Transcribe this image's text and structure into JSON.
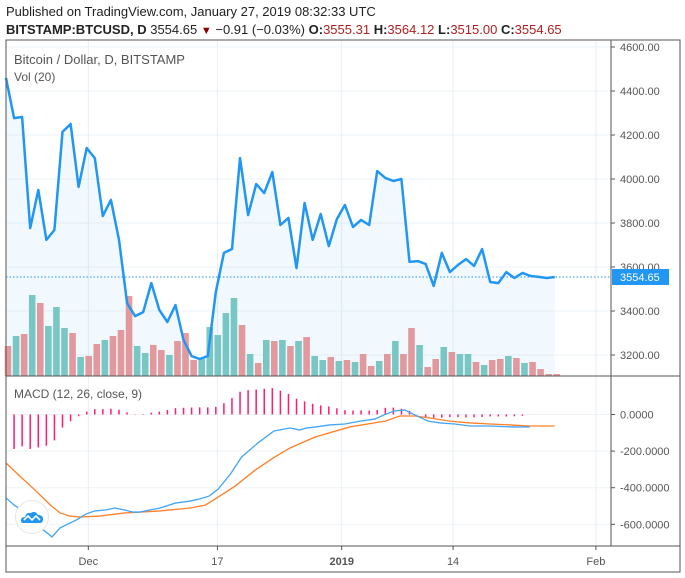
{
  "header": {
    "published": "Published on TradingView.com, January 27, 2019 08:32:33 UTC",
    "symbol": "BITSTAMP:BTCUSD, D",
    "last": "3554.65",
    "change": "−0.91 (−0.03%)",
    "o_label": "O:",
    "o": "3555.31",
    "h_label": "H:",
    "h": "3564.12",
    "l_label": "L:",
    "l": "3515.00",
    "c_label": "C:",
    "c": "3554.65"
  },
  "legend": {
    "main": "Bitcoin / Dollar, D, BITSTAMP",
    "volume": "Vol (20)",
    "macd": "MACD (12, 26, close, 9)"
  },
  "colors": {
    "line": "#2196f3",
    "up": "#7fcac2",
    "down": "#ef9a9a",
    "macd": "#42a5f5",
    "signal": "#ff7f27",
    "hist": "#ff1a75"
  },
  "chart_data": [
    {
      "type": "line",
      "title": "Bitcoin / Dollar, D, BITSTAMP",
      "x_start": "2018-11-20",
      "x_unit": "day",
      "close": [
        4459,
        4277,
        4282,
        3777,
        3950,
        3723,
        3768,
        4214,
        4250,
        3964,
        4141,
        4095,
        3832,
        3905,
        3723,
        3436,
        3377,
        3395,
        3527,
        3405,
        3350,
        3427,
        3268,
        3195,
        3182,
        3195,
        3486,
        3664,
        3682,
        4095,
        3836,
        3977,
        3936,
        4032,
        3791,
        3823,
        3595,
        3891,
        3723,
        3841,
        3695,
        3818,
        3882,
        3782,
        3814,
        3791,
        4036,
        4005,
        3991,
        4000,
        3623,
        3627,
        3614,
        3514,
        3664,
        3577,
        3609,
        3636,
        3605,
        3682,
        3532,
        3527,
        3577,
        3550,
        3573,
        3559,
        3555,
        3550,
        3554.65
      ],
      "volume_rel": [
        30,
        40,
        42,
        81,
        73,
        50,
        69,
        48,
        43,
        19,
        20,
        32,
        36,
        40,
        46,
        80,
        30,
        23,
        31,
        26,
        21,
        35,
        43,
        16,
        17,
        49,
        41,
        63,
        78,
        51,
        22,
        13,
        36,
        35,
        36,
        30,
        35,
        39,
        20,
        16,
        19,
        15,
        16,
        14,
        22,
        10,
        15,
        22,
        35,
        22,
        48,
        31,
        9,
        17,
        29,
        24,
        22,
        22,
        14,
        11,
        16,
        17,
        20,
        18,
        13,
        14,
        7,
        2,
        2
      ],
      "volume_up": [
        false,
        true,
        false,
        true,
        false,
        true,
        true,
        true,
        false,
        true,
        false,
        false,
        true,
        false,
        false,
        false,
        true,
        true,
        false,
        false,
        true,
        false,
        false,
        false,
        true,
        true,
        true,
        true,
        true,
        false,
        true,
        false,
        true,
        false,
        true,
        false,
        true,
        false,
        true,
        true,
        false,
        true,
        false,
        true,
        false,
        false,
        true,
        false,
        true,
        false,
        false,
        true,
        false,
        false,
        true,
        false,
        true,
        true,
        false,
        true,
        false,
        false,
        true,
        false,
        true,
        false,
        false,
        false,
        false
      ],
      "y_ticks": [
        "4600.00",
        "4400.00",
        "4200.00",
        "4000.00",
        "3800.00",
        "3600.00",
        "3400.00",
        "3200.00"
      ],
      "ylim": [
        3120,
        4660
      ],
      "last_price_label": "3554.65"
    },
    {
      "type": "line",
      "title": "MACD (12, 26, close, 9)",
      "macd": [
        [
          0,
          -456
        ],
        [
          1,
          -495
        ],
        [
          2,
          -522
        ],
        [
          3,
          -577
        ],
        [
          4.8,
          -637
        ],
        [
          5.7,
          -669
        ],
        [
          6.7,
          -620
        ],
        [
          7.7,
          -598
        ],
        [
          8.7,
          -577
        ],
        [
          9.9,
          -544
        ],
        [
          11,
          -527
        ],
        [
          12.3,
          -522
        ],
        [
          13.5,
          -511
        ],
        [
          14.7,
          -522
        ],
        [
          15.7,
          -533
        ],
        [
          16.6,
          -533
        ],
        [
          17.8,
          -522
        ],
        [
          19.1,
          -511
        ],
        [
          21,
          -484
        ],
        [
          22.8,
          -473
        ],
        [
          24,
          -462
        ],
        [
          25.2,
          -445
        ],
        [
          26.3,
          -407
        ],
        [
          27.8,
          -326
        ],
        [
          29.2,
          -232
        ],
        [
          31.2,
          -156
        ],
        [
          33.2,
          -90
        ],
        [
          35.2,
          -74
        ],
        [
          36.4,
          -85
        ],
        [
          37.2,
          -74
        ],
        [
          38.4,
          -68
        ],
        [
          40.1,
          -57
        ],
        [
          42,
          -52
        ],
        [
          43.9,
          -36
        ],
        [
          45.7,
          -25
        ],
        [
          46.8,
          -3
        ],
        [
          48.1,
          19
        ],
        [
          49.4,
          25
        ],
        [
          50.7,
          -3
        ],
        [
          52.3,
          -36
        ],
        [
          53.8,
          -46
        ],
        [
          55.6,
          -52
        ],
        [
          57.5,
          -63
        ],
        [
          60,
          -63
        ],
        [
          62.5,
          -68
        ],
        [
          64.9,
          -68
        ]
      ],
      "signal": [
        [
          0,
          -265
        ],
        [
          1.7,
          -336
        ],
        [
          3.6,
          -413
        ],
        [
          5.5,
          -495
        ],
        [
          6.7,
          -538
        ],
        [
          7.9,
          -555
        ],
        [
          9.2,
          -560
        ],
        [
          11.6,
          -555
        ],
        [
          14.7,
          -538
        ],
        [
          19.1,
          -527
        ],
        [
          22.8,
          -511
        ],
        [
          24.7,
          -495
        ],
        [
          25.9,
          -462
        ],
        [
          28.4,
          -391
        ],
        [
          30.9,
          -303
        ],
        [
          33.3,
          -232
        ],
        [
          35.2,
          -183
        ],
        [
          38.3,
          -123
        ],
        [
          42.6,
          -68
        ],
        [
          47,
          -36
        ],
        [
          48.8,
          -8
        ],
        [
          50.7,
          -8
        ],
        [
          52.5,
          -19
        ],
        [
          55,
          -36
        ],
        [
          57.5,
          -46
        ],
        [
          60,
          -52
        ],
        [
          62.5,
          -57
        ],
        [
          64.9,
          -63
        ],
        [
          68,
          -63
        ]
      ],
      "y_ticks": [
        "0.0000",
        "-200.0000",
        "-400.0000",
        "-600.0000"
      ],
      "ylim": [
        -760,
        170
      ]
    }
  ],
  "x_ticks": [
    {
      "label": "Dec",
      "day": 10.2
    },
    {
      "label": "17",
      "day": 26.2
    },
    {
      "label": "2019",
      "day": 41.6
    },
    {
      "label": "14",
      "day": 55.4
    },
    {
      "label": "Feb",
      "day": 73.1
    }
  ]
}
